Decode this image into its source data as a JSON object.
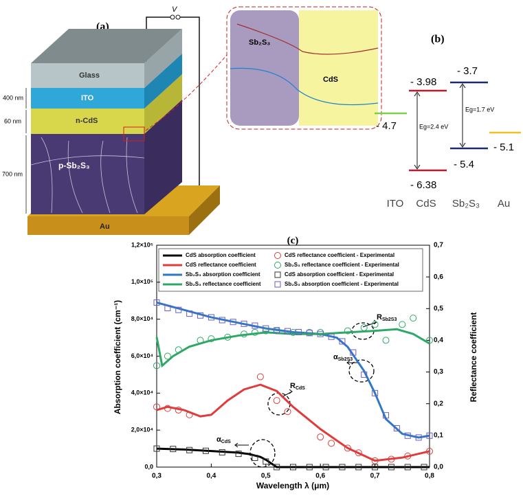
{
  "panel_a": {
    "label": "(a)",
    "voltage": "V",
    "layers": [
      "Glass",
      "ITO",
      "n-CdS",
      "p-Sb₂S₃",
      "Au"
    ],
    "thicknesses": [
      "400 nm",
      "60 nm",
      "700 nm"
    ],
    "inset": [
      "Sb₂S₃",
      "CdS"
    ]
  },
  "panel_b": {
    "label": "(b)",
    "levels": {
      "cds_top": "- 3.98",
      "sb_top": "- 3.7",
      "ito": "- 4.7",
      "sb_bottom": "- 5.4",
      "au": "- 5.1",
      "cds_bottom": "- 6.38"
    },
    "gaps": [
      "Eg=2.4 eV",
      "Eg=1.7 eV"
    ],
    "columns": [
      "ITO",
      "CdS",
      "Sb₂S₃",
      "Au"
    ]
  },
  "chart_data": {
    "type": "line",
    "title": "(c)",
    "x_label": "Wavelength λ (μm)",
    "y_label": "Absorption coefficient (cm⁻¹)",
    "y2_label": "Reflectance coefficient",
    "xlim": [
      0.3,
      0.8
    ],
    "xticks": [
      {
        "value": 0.3,
        "label": "0,3"
      },
      {
        "value": 0.4,
        "label": "0,4"
      },
      {
        "value": 0.5,
        "label": "0,5"
      },
      {
        "value": 0.6,
        "label": "0,6"
      },
      {
        "value": 0.7,
        "label": "0,7"
      },
      {
        "value": 0.8,
        "label": "0,8"
      }
    ],
    "ylim": [
      0,
      120000
    ],
    "yticks": [
      {
        "value": 0,
        "label": "0,0"
      },
      {
        "value": 20000,
        "label": "2,0×10⁴"
      },
      {
        "value": 40000,
        "label": "4,0×10⁴"
      },
      {
        "value": 60000,
        "label": "6,0×10⁴"
      },
      {
        "value": 80000,
        "label": "8,0×10⁴"
      },
      {
        "value": 100000,
        "label": "1,0×10⁵"
      },
      {
        "value": 120000,
        "label": "1,2×10⁵"
      }
    ],
    "y2lim": [
      0,
      0.7
    ],
    "y2ticks": [
      {
        "value": 0,
        "label": "0,0"
      },
      {
        "value": 0.1,
        "label": "0,1"
      },
      {
        "value": 0.2,
        "label": "0,2"
      },
      {
        "value": 0.3,
        "label": "0,3"
      },
      {
        "value": 0.4,
        "label": "0,4"
      },
      {
        "value": 0.5,
        "label": "0,5"
      },
      {
        "value": 0.6,
        "label": "0,6"
      },
      {
        "value": 0.7,
        "label": "0,7"
      }
    ],
    "series": [
      {
        "name": "CdS absorption coefficient",
        "color": "#000000",
        "style": "line",
        "x": [
          0.3,
          0.35,
          0.4,
          0.45,
          0.47,
          0.49,
          0.5,
          0.51,
          0.52,
          0.55,
          0.6,
          0.7,
          0.8
        ],
        "values": [
          10000,
          9500,
          8700,
          7800,
          7000,
          5500,
          4000,
          2000,
          0,
          0,
          0,
          0,
          0
        ]
      },
      {
        "name": "CdS reflectance coefficient",
        "color": "#e03c3c",
        "style": "line",
        "axis": "y2",
        "x": [
          0.3,
          0.32,
          0.35,
          0.38,
          0.4,
          0.43,
          0.46,
          0.49,
          0.52,
          0.55,
          0.6,
          0.65,
          0.7,
          0.75,
          0.8
        ],
        "values": [
          0.18,
          0.19,
          0.18,
          0.16,
          0.165,
          0.21,
          0.245,
          0.26,
          0.24,
          0.19,
          0.12,
          0.06,
          0.02,
          0.03,
          0.05
        ]
      },
      {
        "name": "Sb₂S₃ absorption coefficient",
        "color": "#2f78c8",
        "style": "line",
        "x": [
          0.3,
          0.35,
          0.4,
          0.45,
          0.5,
          0.55,
          0.6,
          0.63,
          0.65,
          0.68,
          0.7,
          0.72,
          0.75,
          0.78,
          0.8
        ],
        "values": [
          89000,
          85000,
          81000,
          78000,
          75000,
          73000,
          72000,
          70000,
          65000,
          52000,
          40000,
          26000,
          18000,
          16000,
          17000
        ]
      },
      {
        "name": "Sb₂S₃ reflectance coefficient",
        "color": "#2ea867",
        "style": "line",
        "axis": "y2",
        "x": [
          0.3,
          0.31,
          0.33,
          0.36,
          0.4,
          0.45,
          0.5,
          0.55,
          0.6,
          0.65,
          0.7,
          0.74,
          0.77,
          0.8
        ],
        "values": [
          0.41,
          0.32,
          0.35,
          0.38,
          0.4,
          0.415,
          0.425,
          0.42,
          0.42,
          0.425,
          0.43,
          0.435,
          0.42,
          0.39
        ]
      },
      {
        "name": "CdS reflectance coefficient - Experimental",
        "color": "#e03c3c",
        "style": "circle",
        "axis": "y2",
        "x": [
          0.3,
          0.32,
          0.34,
          0.36,
          0.49,
          0.52,
          0.54,
          0.6,
          0.62,
          0.65,
          0.67,
          0.7,
          0.73,
          0.76,
          0.8
        ],
        "values": [
          0.19,
          0.185,
          0.18,
          0.165,
          0.285,
          0.21,
          0.175,
          0.095,
          0.075,
          0.06,
          0.045,
          0.02,
          0.025,
          0.035,
          0.05
        ]
      },
      {
        "name": "Sb₂S₃ reflectance coefficient - Experimental",
        "color": "#2ea867",
        "style": "circle",
        "axis": "y2",
        "x": [
          0.3,
          0.32,
          0.34,
          0.38,
          0.4,
          0.43,
          0.46,
          0.48,
          0.5,
          0.52,
          0.55,
          0.58,
          0.6,
          0.65,
          0.68,
          0.7,
          0.72,
          0.75,
          0.77,
          0.8
        ],
        "values": [
          0.32,
          0.35,
          0.37,
          0.4,
          0.405,
          0.41,
          0.42,
          0.425,
          0.43,
          0.43,
          0.425,
          0.425,
          0.425,
          0.43,
          0.44,
          0.45,
          0.4,
          0.45,
          0.47,
          0.4
        ]
      },
      {
        "name": "CdS absorption coefficient - Experimental",
        "color": "#333333",
        "style": "square",
        "x": [
          0.3,
          0.33,
          0.36,
          0.39,
          0.42,
          0.45,
          0.48,
          0.5,
          0.52,
          0.55,
          0.58,
          0.61,
          0.64,
          0.67,
          0.7,
          0.73,
          0.76,
          0.79
        ],
        "values": [
          10000,
          9800,
          9200,
          8800,
          8000,
          7200,
          5000,
          3000,
          0,
          0,
          0,
          0,
          0,
          0,
          0,
          0,
          0,
          0
        ]
      },
      {
        "name": "Sb₂S₃ absorption coefficient - Experimental",
        "color": "#6a5acd",
        "style": "square",
        "x": [
          0.3,
          0.32,
          0.34,
          0.36,
          0.38,
          0.4,
          0.42,
          0.44,
          0.46,
          0.48,
          0.5,
          0.52,
          0.54,
          0.56,
          0.58,
          0.6,
          0.62,
          0.64,
          0.66,
          0.68,
          0.7,
          0.72,
          0.74,
          0.76,
          0.78,
          0.8
        ],
        "values": [
          89000,
          86000,
          85000,
          83000,
          82000,
          81000,
          79500,
          78500,
          77500,
          76500,
          75000,
          74000,
          73500,
          73000,
          72500,
          72000,
          70500,
          68000,
          62000,
          50000,
          40000,
          28000,
          21000,
          17000,
          16000,
          17000
        ]
      }
    ],
    "annotations": [
      {
        "main": "R",
        "sub": "Sb2S3"
      },
      {
        "main": "α",
        "sub": "Sb2S3"
      },
      {
        "main": "R",
        "sub": "CdS"
      },
      {
        "main": "α",
        "sub": "CdS"
      }
    ]
  }
}
